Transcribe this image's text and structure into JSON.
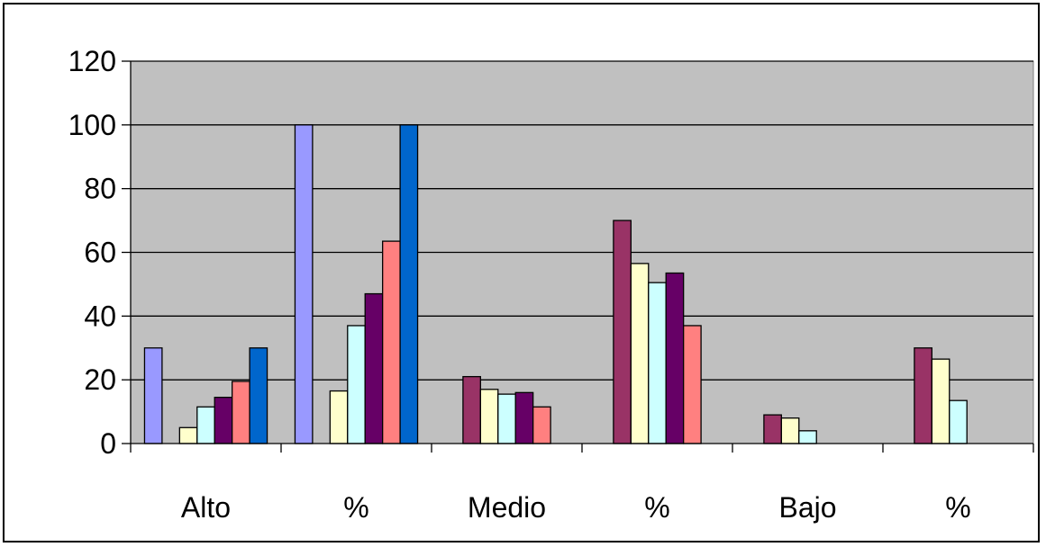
{
  "chart_data": {
    "type": "bar",
    "title": "",
    "xlabel": "",
    "ylabel": "",
    "ylim": [
      0,
      120
    ],
    "yticks": [
      "0",
      "20",
      "40",
      "60",
      "80",
      "100",
      "120"
    ],
    "grid": true,
    "plot_background": "#C0C0C0",
    "categories": [
      "Alto",
      "%",
      "Medio",
      "%",
      "Bajo",
      "%"
    ],
    "series": [
      {
        "color": "#9999FF",
        "values": [
          30,
          100,
          null,
          null,
          null,
          null
        ]
      },
      {
        "color": "#993366",
        "values": [
          null,
          null,
          21,
          70,
          9,
          30
        ]
      },
      {
        "color": "#FFFFCC",
        "values": [
          5,
          16.5,
          17,
          56.5,
          8,
          26.5
        ]
      },
      {
        "color": "#CCFFFF",
        "values": [
          11.5,
          37,
          15.5,
          50.5,
          4,
          13.5
        ]
      },
      {
        "color": "#660066",
        "values": [
          14.5,
          47,
          16,
          53.5,
          null,
          null
        ]
      },
      {
        "color": "#FF8080",
        "values": [
          19.5,
          63.5,
          11.5,
          37,
          null,
          null
        ]
      },
      {
        "color": "#0066CC",
        "values": [
          30,
          100,
          null,
          null,
          null,
          null
        ]
      }
    ]
  }
}
